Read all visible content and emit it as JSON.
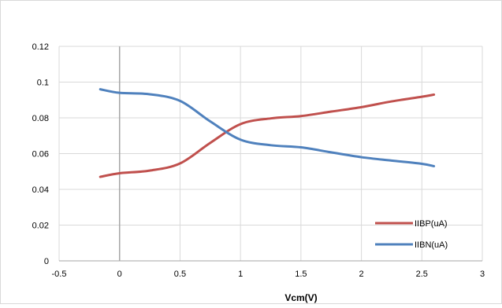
{
  "chart_data": {
    "type": "line",
    "title": "",
    "xlabel": "Vcm(V)",
    "ylabel": "",
    "xlim": [
      -0.5,
      3
    ],
    "ylim": [
      0,
      0.12
    ],
    "x_ticks": [
      -0.5,
      0,
      0.5,
      1,
      1.5,
      2,
      2.5,
      3
    ],
    "y_ticks": [
      0,
      0.02,
      0.04,
      0.06,
      0.08,
      0.1,
      0.12
    ],
    "x_tick_labels": [
      "-0.5",
      "0",
      "0.5",
      "1",
      "1.5",
      "2",
      "2.5",
      "3"
    ],
    "y_tick_labels": [
      "0",
      "0.02",
      "0.04",
      "0.06",
      "0.08",
      "0.1",
      "0.12"
    ],
    "grid": true,
    "legend_position": "bottom-right",
    "series": [
      {
        "name": "IIBP(uA)",
        "color": "#C0504D",
        "x": [
          -0.16,
          0,
          0.25,
          0.5,
          0.75,
          1,
          1.25,
          1.5,
          1.75,
          2,
          2.25,
          2.5,
          2.6
        ],
        "y": [
          0.047,
          0.049,
          0.0505,
          0.0545,
          0.066,
          0.0765,
          0.0797,
          0.081,
          0.0835,
          0.086,
          0.0892,
          0.0918,
          0.093
        ]
      },
      {
        "name": "IIBN(uA)",
        "color": "#4F81BD",
        "x": [
          -0.16,
          0,
          0.25,
          0.5,
          0.75,
          1,
          1.25,
          1.5,
          1.75,
          2,
          2.25,
          2.5,
          2.6
        ],
        "y": [
          0.096,
          0.094,
          0.0932,
          0.0895,
          0.078,
          0.0678,
          0.0647,
          0.0635,
          0.0607,
          0.058,
          0.0561,
          0.0543,
          0.053
        ]
      }
    ]
  }
}
